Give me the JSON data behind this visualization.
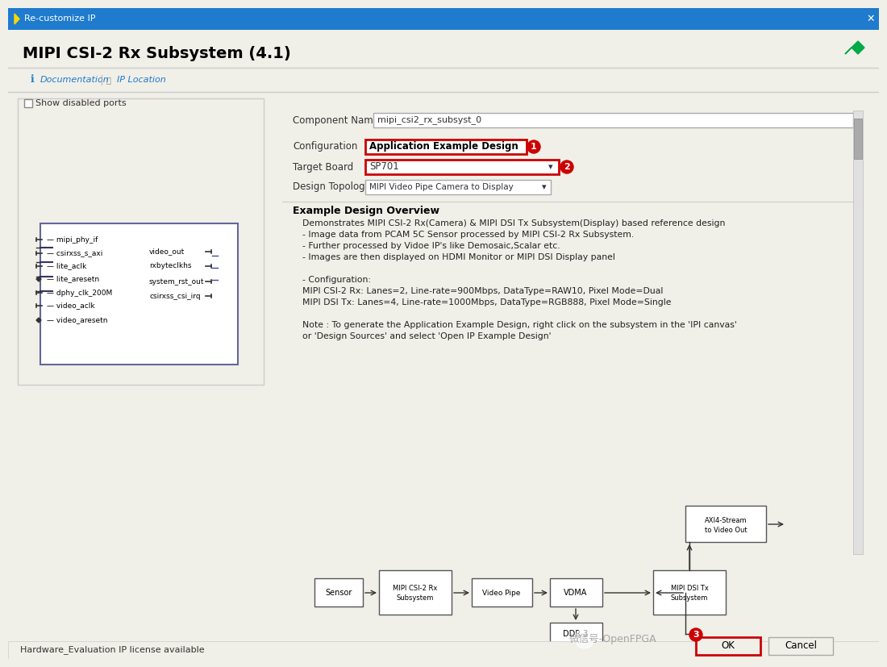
{
  "title_bar_text": "Re-customize IP",
  "title_bar_color": "#1E7BCD",
  "title_bar_text_color": "#FFFFFF",
  "bg_color": "#F0EFE8",
  "dialog_bg": "#F5F5F0",
  "main_title": "MIPI CSI-2 Rx Subsystem (4.1)",
  "logo_color": "#DAA520",
  "nav_items": [
    "Documentation",
    "IP Location"
  ],
  "left_panel_title": "Show disabled ports",
  "left_ports_left": [
    "mipi_phy_if",
    "csirxss_s_axi",
    "lite_aclk",
    "lite_aresetn",
    "dphy_clk_200M",
    "video_aclk",
    "video_aresetn"
  ],
  "left_ports_right": [
    "video_out",
    "rxbyteclkhs",
    "system_rst_out",
    "csirxss_csi_irq"
  ],
  "component_name_label": "Component Name",
  "component_name_value": "mipi_csi2_rx_subsyst_0",
  "config_label": "Configuration",
  "config_value": "Application Example Design",
  "target_board_label": "Target Board",
  "target_board_value": "SP701",
  "design_topology_label": "Design Topology",
  "design_topology_value": "MIPI Video Pipe Camera to Display",
  "overview_title": "Example Design Overview",
  "overview_lines": [
    "Demonstrates MIPI CSI-2 Rx(Camera) & MIPI DSI Tx Subsystem(Display) based reference design",
    "- Image data from PCAM 5C Sensor processed by MIPI CSI-2 Rx Subsystem.",
    "- Further processed by Vidoe IP's like Demosaic,Scalar etc.",
    "- Images are then displayed on HDMI Monitor or MIPI DSI Display panel",
    "",
    "- Configuration:",
    "MIPI CSI-2 Rx: Lanes=2, Line-rate=900Mbps, DataType=RAW10, Pixel Mode=Dual",
    "MIPI DSI Tx: Lanes=4, Line-rate=1000Mbps, DataType=RGB888, Pixel Mode=Single",
    "",
    "Note : To generate the Application Example Design, right click on the subsystem in the 'IPI canvas'",
    "or 'Design Sources' and select 'Open IP Example Design'"
  ],
  "block_boxes": [
    "Sensor",
    "MIPI CSI-2 Rx\nSubsystem",
    "Video Pipe",
    "VDMA",
    "DDR 3",
    "MIPI DSI Tx\nSubsystem",
    "AXI4-Stream\nto Video Out"
  ],
  "status_bar_text": "Hardware_Evaluation IP license available",
  "ok_button": "OK",
  "cancel_button": "Cancel",
  "red_box_color": "#CC0000",
  "watermark_text": "微信号-OpenFPGA",
  "number_labels": [
    "1",
    "2",
    "3"
  ]
}
